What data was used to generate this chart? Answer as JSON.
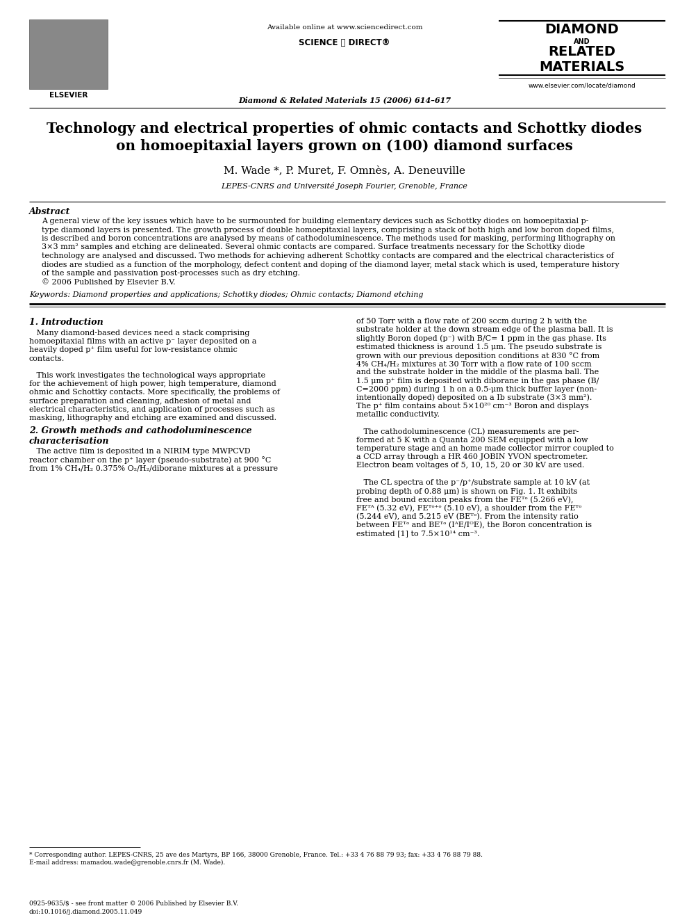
{
  "bg_color": "#ffffff",
  "header_available_online": "Available online at www.sciencedirect.com",
  "journal_name": "Diamond & Related Materials 15 (2006) 614–617",
  "journal_url": "www.elsevier.com/locate/diamond",
  "paper_title_line1": "Technology and electrical properties of ohmic contacts and Schottky diodes",
  "paper_title_line2": "on homoepitaxial layers grown on (100) diamond surfaces",
  "authors": "M. Wade *, P. Muret, F. Omnès, A. Deneuville",
  "affiliation": "LEPES-CNRS and Université Joseph Fourier, Grenoble, France",
  "abstract_title": "Abstract",
  "keywords_text": "Keywords: Diamond properties and applications; Schottky diodes; Ohmic contacts; Diamond etching",
  "section1_title": "1. Introduction",
  "section2_title": "2. Growth methods and cathodoluminescence\ncharacterisation",
  "footnote_star": "* Corresponding author. LEPES-CNRS, 25 ave des Martyrs, BP 166, 38000 Grenoble, France. Tel.: +33 4 76 88 79 93; fax: +33 4 76 88 79 88.",
  "footnote_email": "E-mail address: mamadou.wade@grenoble.cnrs.fr (M. Wade).",
  "footer_left": "0925-9635/$ - see front matter © 2006 Published by Elsevier B.V.",
  "footer_doi": "doi:10.1016/j.diamond.2005.11.049",
  "abstract_lines": [
    "A general view of the key issues which have to be surmounted for building elementary devices such as Schottky diodes on homoepitaxial p-",
    "type diamond layers is presented. The growth process of double homoepitaxial layers, comprising a stack of both high and low boron doped films,",
    "is described and boron concentrations are analysed by means of cathodoluminescence. The methods used for masking, performing lithography on",
    "3×3 mm² samples and etching are delineated. Several ohmic contacts are compared. Surface treatments necessary for the Schottky diode",
    "technology are analysed and discussed. Two methods for achieving adherent Schottky contacts are compared and the electrical characteristics of",
    "diodes are studied as a function of the morphology, defect content and doping of the diamond layer, metal stack which is used, temperature history",
    "of the sample and passivation post-processes such as dry etching.",
    "© 2006 Published by Elsevier B.V."
  ],
  "left_col_lines": [
    "   Many diamond-based devices need a stack comprising",
    "homoepitaxial films with an active p⁻ layer deposited on a",
    "heavily doped p⁺ film useful for low-resistance ohmic",
    "contacts.",
    "",
    "   This work investigates the technological ways appropriate",
    "for the achievement of high power, high temperature, diamond",
    "ohmic and Schottky contacts. More specifically, the problems of",
    "surface preparation and cleaning, adhesion of metal and",
    "electrical characteristics, and application of processes such as",
    "masking, lithography and etching are examined and discussed."
  ],
  "sec2_left_lines": [
    "   The active film is deposited in a NIRIM type MWPCVD",
    "reactor chamber on the p⁺ layer (pseudo-substrate) at 900 °C",
    "from 1% CH₄/H₂ 0.375% O₂/H₂/diborane mixtures at a pressure"
  ],
  "right_col_lines": [
    "of 50 Torr with a flow rate of 200 sccm during 2 h with the",
    "substrate holder at the down stream edge of the plasma ball. It is",
    "slightly Boron doped (p⁻) with B/C= 1 ppm in the gas phase. Its",
    "estimated thickness is around 1.5 μm. The pseudo substrate is",
    "grown with our previous deposition conditions at 830 °C from",
    "4% CH₄/H₂ mixtures at 30 Torr with a flow rate of 100 sccm",
    "and the substrate holder in the middle of the plasma ball. The",
    "1.5 μm p⁺ film is deposited with diborane in the gas phase (B/",
    "C=2000 ppm) during 1 h on a 0.5-μm thick buffer layer (non-",
    "intentionally doped) deposited on a Ib substrate (3×3 mm²).",
    "The p⁺ film contains about 5×10²⁰ cm⁻³ Boron and displays",
    "metallic conductivity.",
    "",
    "   The cathodoluminescence (CL) measurements are per-",
    "formed at 5 K with a Quanta 200 SEM equipped with a low",
    "temperature stage and an home made collector mirror coupled to",
    "a CCD array through a HR 460 JOBIN YVON spectrometer.",
    "Electron beam voltages of 5, 10, 15, 20 or 30 kV are used.",
    "",
    "   The CL spectra of the p⁻/p⁺/substrate sample at 10 kV (at",
    "probing depth of 0.88 μm) is shown on Fig. 1. It exhibits",
    "free and bound exciton peaks from the FEᵀᵒ (5.266 eV),",
    "FEᵀᴬ (5.32 eV), FEᵀᵒ⁺ᵒ (5.10 eV), a shoulder from the FEᵀᵒ",
    "(5.244 eV), and 5.215 eV (BEᵀᵒ). From the intensity ratio",
    "between FEᵀᵒ and BEᵀᵒ (IᴬE/IᴼE), the Boron concentration is",
    "estimated [1] to 7.5×10¹⁴ cm⁻³."
  ]
}
